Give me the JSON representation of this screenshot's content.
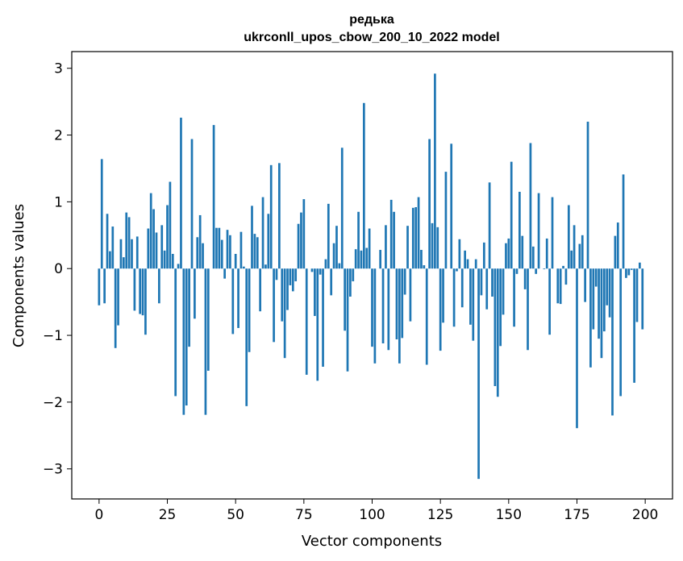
{
  "chart_data": {
    "type": "bar",
    "title": "редька",
    "subtitle": "ukrconll_upos_cbow_200_10_2022 model",
    "xlabel": "Vector components",
    "ylabel": "Components values",
    "xlim": [
      -10,
      210
    ],
    "ylim": [
      -3.45,
      3.25
    ],
    "xticks": [
      0,
      25,
      50,
      75,
      100,
      125,
      150,
      175,
      200
    ],
    "yticks": [
      -3,
      -2,
      -1,
      0,
      1,
      2,
      3
    ],
    "bar_color": "#1f77b4",
    "grid": false,
    "values": [
      -0.55,
      1.64,
      -0.52,
      0.82,
      0.26,
      0.63,
      -1.19,
      -0.85,
      0.44,
      0.17,
      0.84,
      0.77,
      0.44,
      -0.63,
      0.48,
      -0.68,
      -0.7,
      -0.99,
      0.6,
      1.13,
      0.89,
      0.54,
      -0.52,
      0.65,
      0.27,
      0.95,
      1.3,
      0.22,
      -1.91,
      0.07,
      2.26,
      -2.19,
      -2.05,
      -1.17,
      1.94,
      -0.75,
      0.47,
      0.8,
      0.38,
      -2.19,
      -1.53,
      0.0,
      2.15,
      0.61,
      0.61,
      0.43,
      -0.15,
      0.58,
      0.5,
      -0.98,
      0.22,
      -0.89,
      0.55,
      0.03,
      -2.06,
      -1.25,
      0.94,
      0.52,
      0.47,
      -0.64,
      1.07,
      0.06,
      0.82,
      1.55,
      -1.1,
      -0.17,
      1.58,
      -0.79,
      -1.34,
      -0.62,
      -0.25,
      -0.34,
      -0.19,
      0.67,
      0.84,
      1.04,
      -1.59,
      0.0,
      -0.05,
      -0.71,
      -1.68,
      -0.09,
      -1.47,
      0.14,
      0.97,
      -0.4,
      0.38,
      0.64,
      0.08,
      1.81,
      -0.93,
      -1.54,
      -0.42,
      -0.19,
      0.29,
      0.85,
      0.27,
      2.48,
      0.31,
      0.6,
      -1.17,
      -1.42,
      0.0,
      0.28,
      -1.12,
      0.65,
      -1.22,
      1.03,
      0.85,
      -1.06,
      -1.42,
      -1.04,
      -0.39,
      0.64,
      -0.79,
      0.91,
      0.92,
      1.07,
      0.28,
      0.05,
      -1.44,
      1.94,
      0.68,
      2.92,
      0.62,
      -1.23,
      -0.81,
      1.45,
      0.0,
      1.87,
      -0.87,
      -0.04,
      0.44,
      -0.58,
      0.27,
      0.14,
      -0.84,
      -1.08,
      0.14,
      -3.15,
      -0.4,
      0.39,
      -0.61,
      1.29,
      -0.42,
      -1.76,
      -1.92,
      -1.16,
      -0.69,
      0.38,
      0.45,
      1.6,
      -0.87,
      -0.08,
      1.15,
      0.49,
      -0.31,
      -1.22,
      1.88,
      0.33,
      -0.08,
      1.13,
      0.0,
      -0.01,
      0.45,
      -0.99,
      1.07,
      0.0,
      -0.52,
      -0.53,
      0.04,
      -0.24,
      0.95,
      0.27,
      0.65,
      -2.39,
      0.37,
      0.5,
      -0.5,
      2.2,
      -1.48,
      -0.91,
      -0.27,
      -1.05,
      -1.34,
      -0.94,
      -0.55,
      -0.73,
      -2.2,
      0.49,
      0.69,
      -1.91,
      1.41,
      -0.14,
      -0.1,
      -0.02,
      -1.71,
      -0.8,
      0.09,
      -0.91
    ]
  }
}
